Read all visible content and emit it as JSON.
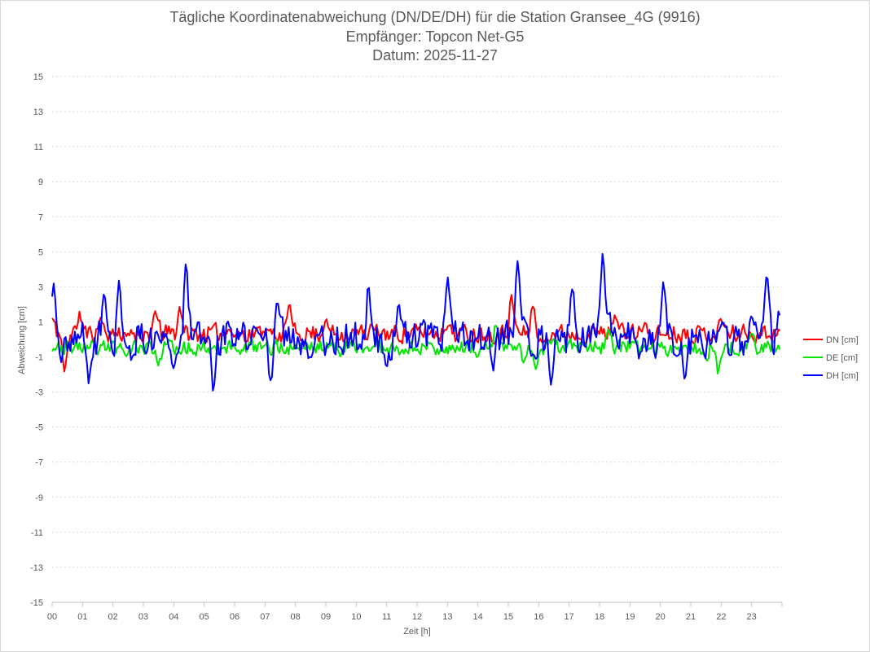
{
  "chart_data": {
    "type": "line",
    "title": [
      "Tägliche Koordinatenabweichung (DN/DE/DH) für die Station Gransee_4G (9916)",
      "Empfänger: Topcon Net-G5",
      "Datum: 2025-11-27"
    ],
    "xlabel": "Zeit [h]",
    "ylabel": "Abweichung [cm]",
    "ylim": [
      -15,
      15
    ],
    "xlim": [
      0,
      24
    ],
    "yticks": [
      "15",
      "13",
      "11",
      "9",
      "7",
      "5",
      "3",
      "1",
      "-1",
      "-3",
      "-5",
      "-7",
      "-9",
      "-11",
      "-13",
      "-15"
    ],
    "yticks_values": [
      15,
      13,
      11,
      9,
      7,
      5,
      3,
      1,
      -1,
      -3,
      -5,
      -7,
      -9,
      -11,
      -13,
      -15
    ],
    "xticks": [
      "00",
      "01",
      "02",
      "03",
      "04",
      "05",
      "06",
      "07",
      "08",
      "09",
      "10",
      "11",
      "12",
      "13",
      "14",
      "15",
      "16",
      "17",
      "18",
      "19",
      "20",
      "21",
      "22",
      "23"
    ],
    "grid": "horizontal dotted",
    "legend_position": "right",
    "series": [
      {
        "name": "DN [cm]",
        "color": "#ff0000",
        "seed": 11,
        "base": 0.35,
        "noise": 0.65,
        "smooth": 0.25,
        "anchors": [
          [
            0.0,
            1.2
          ],
          [
            0.4,
            -1.7
          ],
          [
            0.9,
            1.4
          ],
          [
            1.6,
            1.2
          ],
          [
            2.5,
            0.2
          ],
          [
            3.4,
            1.6
          ],
          [
            4.2,
            1.8
          ],
          [
            5.8,
            0.6
          ],
          [
            7.0,
            0.5
          ],
          [
            7.8,
            1.9
          ],
          [
            9.0,
            1.0
          ],
          [
            10.5,
            0.7
          ],
          [
            13.0,
            0.8
          ],
          [
            15.1,
            2.4
          ],
          [
            15.8,
            2.0
          ],
          [
            16.1,
            -0.3
          ],
          [
            18.5,
            1.4
          ],
          [
            19.5,
            0.8
          ],
          [
            22.0,
            1.2
          ],
          [
            23.9,
            0.5
          ]
        ]
      },
      {
        "name": "DE [cm]",
        "color": "#00e600",
        "seed": 23,
        "base": -0.45,
        "noise": 0.55,
        "smooth": 0.25,
        "anchors": [
          [
            0.0,
            -0.5
          ],
          [
            1.5,
            -0.8
          ],
          [
            3.5,
            -1.4
          ],
          [
            4.2,
            -0.8
          ],
          [
            6.2,
            -0.7
          ],
          [
            8.0,
            -0.4
          ],
          [
            9.5,
            -0.8
          ],
          [
            12.0,
            -0.7
          ],
          [
            14.0,
            -1.0
          ],
          [
            14.6,
            0.9
          ],
          [
            15.5,
            -1.2
          ],
          [
            15.9,
            -1.6
          ],
          [
            17.5,
            -0.3
          ],
          [
            18.3,
            0.6
          ],
          [
            21.5,
            -1.2
          ],
          [
            21.9,
            -1.8
          ],
          [
            23.0,
            0.4
          ],
          [
            23.9,
            -0.4
          ]
        ]
      },
      {
        "name": "DH [cm]",
        "color": "#0000ff",
        "seed": 37,
        "base": 0.05,
        "noise": 1.25,
        "smooth": 0.25,
        "anchors": [
          [
            0.05,
            3.1
          ],
          [
            0.3,
            -1.4
          ],
          [
            1.2,
            -2.4
          ],
          [
            1.7,
            2.6
          ],
          [
            2.2,
            3.2
          ],
          [
            2.6,
            -1.0
          ],
          [
            4.0,
            -1.5
          ],
          [
            4.4,
            4.4
          ],
          [
            5.3,
            -2.9
          ],
          [
            7.2,
            -2.6
          ],
          [
            7.4,
            2.3
          ],
          [
            8.5,
            -1.1
          ],
          [
            10.4,
            3.0
          ],
          [
            11.0,
            -1.6
          ],
          [
            11.4,
            2.0
          ],
          [
            13.0,
            3.4
          ],
          [
            14.5,
            -1.6
          ],
          [
            15.3,
            4.6
          ],
          [
            15.5,
            1.1
          ],
          [
            16.4,
            -2.6
          ],
          [
            17.1,
            2.9
          ],
          [
            18.1,
            4.8
          ],
          [
            18.3,
            1.5
          ],
          [
            19.3,
            -1.0
          ],
          [
            20.1,
            3.2
          ],
          [
            20.8,
            -2.4
          ],
          [
            22.3,
            -0.9
          ],
          [
            23.0,
            1.5
          ],
          [
            23.5,
            3.8
          ],
          [
            23.9,
            1.6
          ]
        ]
      }
    ]
  }
}
